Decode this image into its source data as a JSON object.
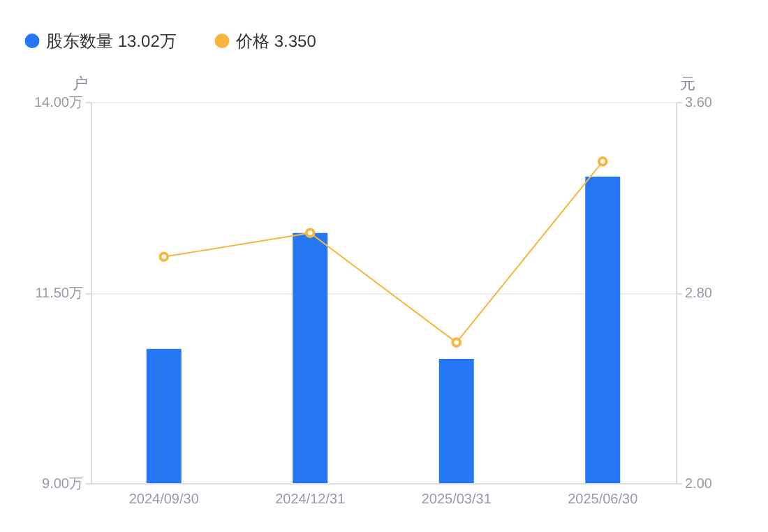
{
  "chart_data": {
    "type": "bar",
    "categories": [
      "2024/09/30",
      "2024/12/31",
      "2025/03/31",
      "2025/06/30"
    ],
    "series": [
      {
        "name": "股东数量 13.02万",
        "color": "#2577f6",
        "values": [
          10.76,
          12.28,
          10.63,
          13.02
        ]
      },
      {
        "name": "价格 3.350",
        "type": "line",
        "axis": "y2",
        "color": "#f6b73c",
        "values": [
          2.95,
          3.05,
          2.59,
          3.35
        ],
        "marker": "circle",
        "line_style": "solid"
      }
    ],
    "ylabel": "户",
    "y2label": "元",
    "ylim": [
      9,
      14
    ],
    "yticks": [
      {
        "value": 9,
        "label": "9.00万"
      },
      {
        "value": 11.5,
        "label": "11.50万"
      },
      {
        "value": 14,
        "label": "14.00万"
      }
    ],
    "y2lim": [
      2,
      3.6
    ],
    "y2ticks": [
      {
        "value": 2,
        "label": "2.00"
      },
      {
        "value": 2.8,
        "label": "2.80"
      },
      {
        "value": 3.6,
        "label": "3.60"
      }
    ],
    "grid": "y",
    "legend": "top left"
  }
}
